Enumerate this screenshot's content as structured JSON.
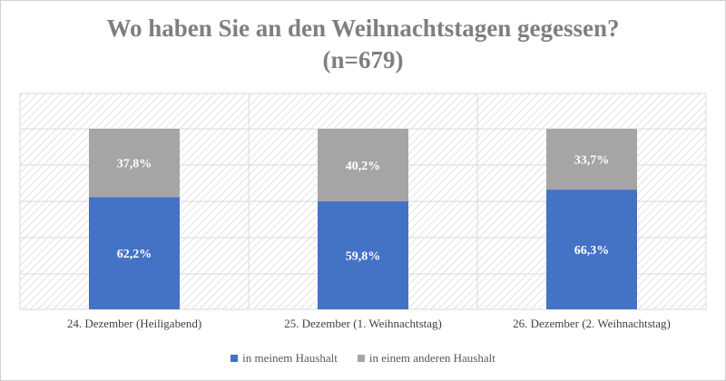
{
  "chart_data": {
    "type": "bar",
    "stacked": true,
    "percent": true,
    "title_line1": "Wo haben Sie an den Weihnachtstagen gegessen?",
    "title_line2": "(n=679)",
    "categories": [
      "24. Dezember (Heiligabend)",
      "25. Dezember (1. Weihnachtstag)",
      "26. Dezember (2. Weihnachtstag)"
    ],
    "series": [
      {
        "name": "in meinem Haushalt",
        "values": [
          62.2,
          59.8,
          66.3
        ],
        "labels": [
          "62,2%",
          "59,8%",
          "66,3%"
        ],
        "color": "#4472c4"
      },
      {
        "name": "in einem anderen Haushalt",
        "values": [
          37.8,
          40.2,
          33.7
        ],
        "labels": [
          "37,8%",
          "40,2%",
          "33,7%"
        ],
        "color": "#a5a5a5"
      }
    ],
    "ylim": [
      0,
      100
    ],
    "grid": true,
    "legend": "bottom"
  }
}
